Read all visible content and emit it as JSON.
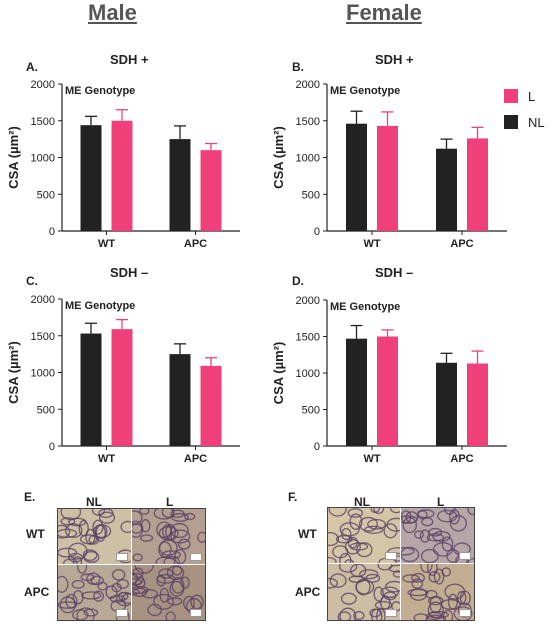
{
  "columns": {
    "male": "Male",
    "female": "Female"
  },
  "colors": {
    "L": "#f0407a",
    "NL": "#222222"
  },
  "legend": [
    {
      "key": "L",
      "label": "L"
    },
    {
      "key": "NL",
      "label": "NL"
    }
  ],
  "chart_data": [
    {
      "type": "bar",
      "panel": "A.",
      "title": "SDH +",
      "annotation": "ME Genotype",
      "categories": [
        "WT",
        "APC"
      ],
      "ylabel": "CSA (µm²)",
      "ylim": [
        0,
        2000
      ],
      "yticks": [
        0,
        500,
        1000,
        1500,
        2000
      ],
      "series": [
        {
          "name": "NL",
          "values": [
            1440,
            1250
          ],
          "errors": [
            120,
            180
          ]
        },
        {
          "name": "L",
          "values": [
            1500,
            1100
          ],
          "errors": [
            150,
            90
          ]
        }
      ]
    },
    {
      "type": "bar",
      "panel": "B.",
      "title": "SDH +",
      "annotation": "ME Genotype",
      "categories": [
        "WT",
        "APC"
      ],
      "ylabel": "CSA (µm²)",
      "ylim": [
        0,
        2000
      ],
      "yticks": [
        0,
        500,
        1000,
        1500,
        2000
      ],
      "series": [
        {
          "name": "NL",
          "values": [
            1460,
            1120
          ],
          "errors": [
            170,
            130
          ]
        },
        {
          "name": "L",
          "values": [
            1430,
            1260
          ],
          "errors": [
            190,
            150
          ]
        }
      ]
    },
    {
      "type": "bar",
      "panel": "C.",
      "title": "SDH –",
      "annotation": "ME Genotype",
      "categories": [
        "WT",
        "APC"
      ],
      "ylabel": "CSA (µm²)",
      "ylim": [
        0,
        2000
      ],
      "yticks": [
        0,
        500,
        1000,
        1500,
        2000
      ],
      "series": [
        {
          "name": "NL",
          "values": [
            1530,
            1250
          ],
          "errors": [
            140,
            140
          ]
        },
        {
          "name": "L",
          "values": [
            1590,
            1090
          ],
          "errors": [
            130,
            110
          ]
        }
      ]
    },
    {
      "type": "bar",
      "panel": "D.",
      "title": "SDH –",
      "annotation": "ME Genotype",
      "categories": [
        "WT",
        "APC"
      ],
      "ylabel": "CSA (µm²)",
      "ylim": [
        0,
        2000
      ],
      "yticks": [
        0,
        500,
        1000,
        1500,
        2000
      ],
      "series": [
        {
          "name": "NL",
          "values": [
            1470,
            1140
          ],
          "errors": [
            180,
            130
          ]
        },
        {
          "name": "L",
          "values": [
            1500,
            1130
          ],
          "errors": [
            90,
            170
          ]
        }
      ]
    }
  ],
  "micrographs": [
    {
      "panel": "E.",
      "col_labels": [
        "NL",
        "L"
      ],
      "row_labels": [
        "WT",
        "APC"
      ]
    },
    {
      "panel": "F.",
      "col_labels": [
        "NL",
        "L"
      ],
      "row_labels": [
        "WT",
        "APC"
      ]
    }
  ]
}
